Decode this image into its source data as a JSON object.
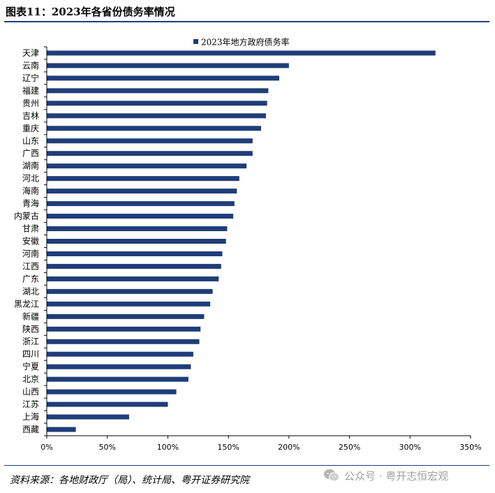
{
  "figure_title": "图表11：2023年各省份债务率情况",
  "source_note": "资料来源：各地财政厅（局）、统计局、粤开证券研究院",
  "watermark_text": "公众号 · 粤开志恒宏观",
  "watermark_icon": "wechat-icon",
  "bar_color": "#1f3d7a",
  "chart_data": {
    "type": "bar",
    "orientation": "horizontal",
    "title": "",
    "xlabel": "",
    "ylabel": "",
    "xlim": [
      0,
      350
    ],
    "x_ticks": [
      "0%",
      "50%",
      "100%",
      "150%",
      "200%",
      "250%",
      "300%",
      "350%"
    ],
    "legend": "top-center",
    "grid": false,
    "categories": [
      "天津",
      "云南",
      "辽宁",
      "福建",
      "贵州",
      "吉林",
      "重庆",
      "山东",
      "广西",
      "湖南",
      "河北",
      "海南",
      "青海",
      "内蒙古",
      "甘肃",
      "安徽",
      "河南",
      "江西",
      "广东",
      "湖北",
      "黑龙江",
      "新疆",
      "陕西",
      "浙江",
      "四川",
      "宁夏",
      "北京",
      "山西",
      "江苏",
      "上海",
      "西藏"
    ],
    "series": [
      {
        "name": "2023年地方政府债务率",
        "values": [
          321,
          200,
          192,
          183,
          182,
          181,
          177,
          170,
          170,
          165,
          159,
          157,
          155,
          154,
          149,
          148,
          145,
          144,
          142,
          137,
          135,
          130,
          127,
          126,
          121,
          119,
          117,
          107,
          100,
          68,
          24
        ]
      }
    ]
  }
}
